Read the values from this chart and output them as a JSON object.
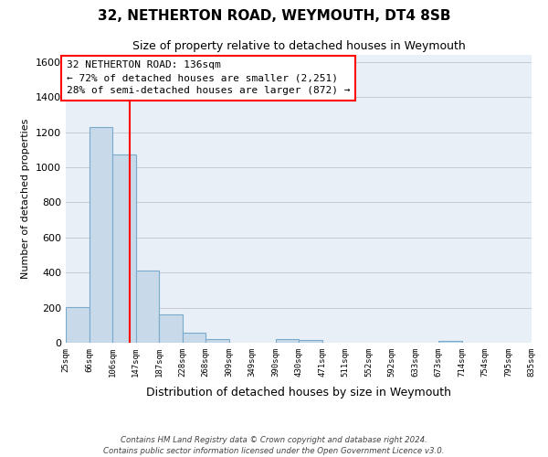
{
  "title": "32, NETHERTON ROAD, WEYMOUTH, DT4 8SB",
  "subtitle": "Size of property relative to detached houses in Weymouth",
  "xlabel": "Distribution of detached houses by size in Weymouth",
  "ylabel": "Number of detached properties",
  "bar_color": "#c8d9ea",
  "bar_edge_color": "#7aabcc",
  "background_color": "#ffffff",
  "plot_bg_color": "#e8eff6",
  "grid_color": "#c8c8d0",
  "bin_edges": [
    25,
    66,
    106,
    147,
    187,
    228,
    268,
    309,
    349,
    390,
    430,
    471,
    511,
    552,
    592,
    633,
    673,
    714,
    754,
    795,
    835
  ],
  "bin_labels": [
    "25sqm",
    "66sqm",
    "106sqm",
    "147sqm",
    "187sqm",
    "228sqm",
    "268sqm",
    "309sqm",
    "349sqm",
    "390sqm",
    "430sqm",
    "471sqm",
    "511sqm",
    "552sqm",
    "592sqm",
    "633sqm",
    "673sqm",
    "714sqm",
    "754sqm",
    "795sqm",
    "835sqm"
  ],
  "counts": [
    205,
    1230,
    1075,
    410,
    160,
    55,
    22,
    0,
    0,
    20,
    15,
    0,
    0,
    0,
    0,
    0,
    12,
    0,
    0,
    0
  ],
  "property_line_x": 136,
  "annotation_line1": "32 NETHERTON ROAD: 136sqm",
  "annotation_line2": "← 72% of detached houses are smaller (2,251)",
  "annotation_line3": "28% of semi-detached houses are larger (872) →",
  "ylim_max": 1640,
  "yticks": [
    0,
    200,
    400,
    600,
    800,
    1000,
    1200,
    1400,
    1600
  ],
  "footer_line1": "Contains HM Land Registry data © Crown copyright and database right 2024.",
  "footer_line2": "Contains public sector information licensed under the Open Government Licence v3.0."
}
